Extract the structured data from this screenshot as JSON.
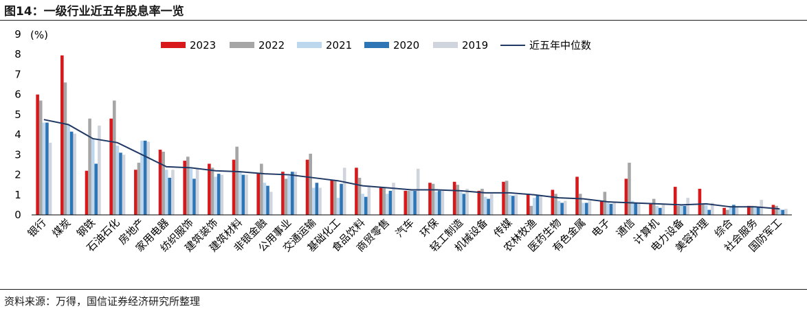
{
  "figure_title": "图14：一级行业近五年股息率一览",
  "source_note": "资料来源：万得，国信证券经济研究所整理",
  "chart_data": {
    "type": "bar",
    "title": "",
    "xlabel": "",
    "ylabel": "(%)",
    "ylim": [
      0,
      9
    ],
    "yticks": [
      0,
      1,
      2,
      3,
      4,
      5,
      6,
      7,
      8,
      9
    ],
    "grid": false,
    "legend_position": "top",
    "categories": [
      "银行",
      "煤炭",
      "钢铁",
      "石油石化",
      "房地产",
      "家用电器",
      "纺织服饰",
      "建筑装饰",
      "建筑材料",
      "非银金融",
      "公用事业",
      "交通运输",
      "基础化工",
      "食品饮料",
      "商贸零售",
      "汽车",
      "环保",
      "轻工制造",
      "机械设备",
      "传媒",
      "农林牧渔",
      "医药生物",
      "有色金属",
      "电子",
      "通信",
      "计算机",
      "电力设备",
      "美容护理",
      "综合",
      "社会服务",
      "国防军工"
    ],
    "series": [
      {
        "name": "2023",
        "color": "#d7191c",
        "values": [
          6.0,
          7.95,
          2.2,
          4.8,
          2.25,
          3.25,
          2.7,
          2.55,
          2.75,
          2.1,
          2.15,
          2.75,
          1.75,
          2.35,
          1.35,
          1.2,
          1.6,
          1.65,
          1.2,
          1.65,
          1.05,
          1.25,
          1.9,
          0.7,
          1.8,
          0.55,
          1.4,
          1.3,
          0.35,
          0.45,
          0.5
        ]
      },
      {
        "name": "2022",
        "color": "#a6a6a6",
        "values": [
          5.7,
          6.6,
          4.8,
          5.7,
          2.6,
          3.15,
          2.9,
          2.35,
          3.4,
          2.55,
          1.8,
          3.05,
          1.7,
          1.85,
          1.35,
          1.2,
          1.55,
          1.5,
          1.3,
          1.7,
          0.45,
          1.05,
          1.05,
          1.15,
          2.6,
          0.8,
          0.45,
          0.55,
          0.25,
          0.45,
          0.45
        ]
      },
      {
        "name": "2021",
        "color": "#bdd7ee",
        "values": [
          4.6,
          4.5,
          3.8,
          3.45,
          3.7,
          2.25,
          2.3,
          1.9,
          2.15,
          1.6,
          1.95,
          1.35,
          0.85,
          1.05,
          1.05,
          1.25,
          1.15,
          1.15,
          0.9,
          1.0,
          0.85,
          0.7,
          0.6,
          0.6,
          0.7,
          0.45,
          0.5,
          0.5,
          0.45,
          0.4,
          0.3
        ]
      },
      {
        "name": "2020",
        "color": "#2e75b6",
        "values": [
          4.6,
          4.15,
          2.55,
          3.1,
          3.7,
          1.85,
          1.8,
          2.05,
          2.0,
          1.45,
          2.15,
          1.6,
          1.55,
          0.9,
          1.2,
          1.2,
          1.2,
          1.05,
          0.8,
          0.95,
          1.0,
          0.6,
          0.6,
          0.55,
          0.6,
          0.35,
          0.45,
          0.25,
          0.5,
          0.4,
          0.25
        ]
      },
      {
        "name": "2019",
        "color": "#d0d5dd",
        "values": [
          3.6,
          4.05,
          4.45,
          3.0,
          3.65,
          2.25,
          2.3,
          2.0,
          2.0,
          1.15,
          2.15,
          1.35,
          2.35,
          1.4,
          1.6,
          2.3,
          1.2,
          1.3,
          1.05,
          1.0,
          0.95,
          0.7,
          0.7,
          0.6,
          0.55,
          0.5,
          0.85,
          0.6,
          0.4,
          0.75,
          0.3
        ]
      }
    ],
    "line": {
      "name": "近五年中位数",
      "color": "#1f3864",
      "values": [
        4.75,
        4.5,
        3.8,
        3.6,
        3.0,
        2.4,
        2.35,
        2.2,
        2.15,
        2.05,
        2.0,
        1.85,
        1.7,
        1.45,
        1.35,
        1.25,
        1.25,
        1.2,
        1.1,
        1.1,
        1.0,
        0.85,
        0.8,
        0.65,
        0.6,
        0.55,
        0.5,
        0.55,
        0.4,
        0.4,
        0.3
      ]
    }
  }
}
